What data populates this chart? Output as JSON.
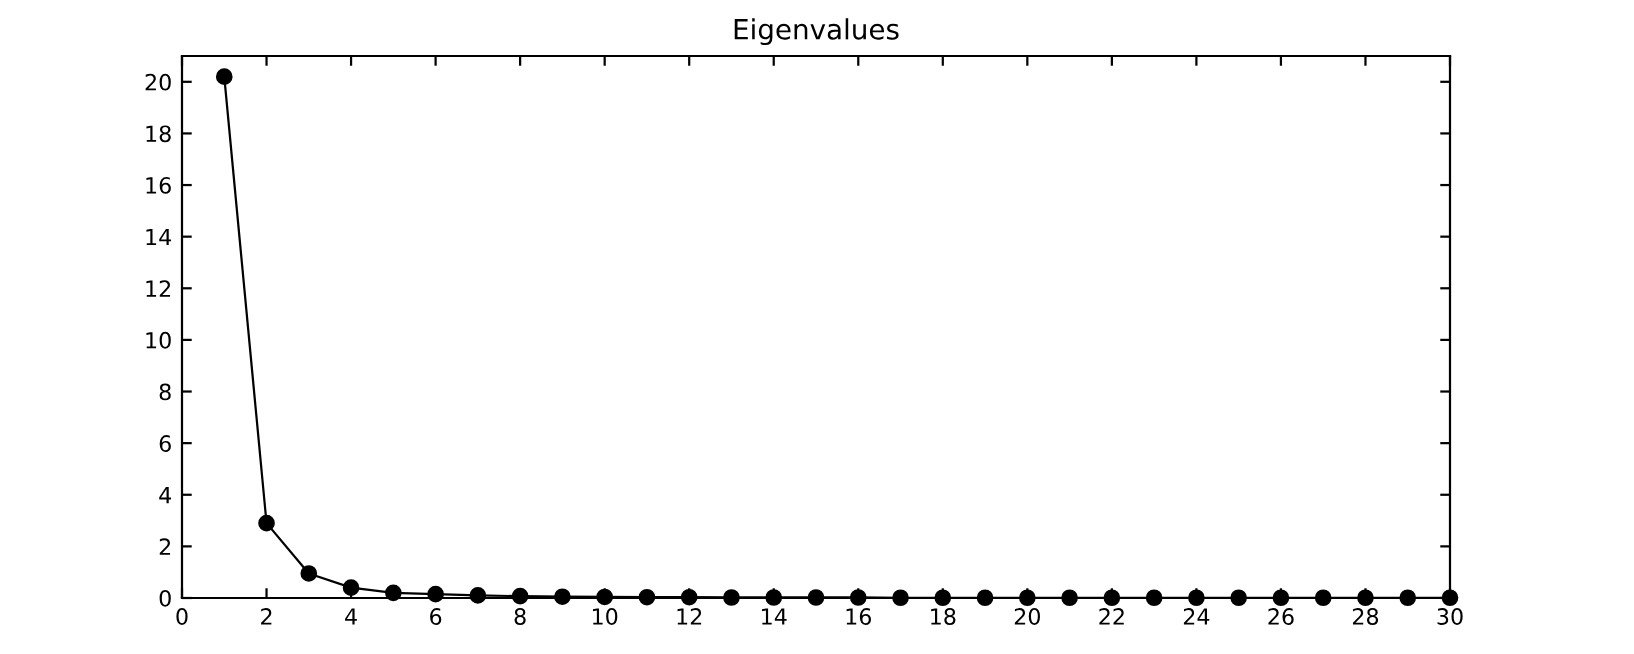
{
  "chart_data": {
    "type": "line",
    "title": "Eigenvalues",
    "x": [
      1,
      2,
      3,
      4,
      5,
      6,
      7,
      8,
      9,
      10,
      11,
      12,
      13,
      14,
      15,
      16,
      17,
      18,
      19,
      20,
      21,
      22,
      23,
      24,
      25,
      26,
      27,
      28,
      29,
      30
    ],
    "series": [
      {
        "color": "#000000",
        "values": [
          20.2,
          2.9,
          0.95,
          0.4,
          0.2,
          0.15,
          0.1,
          0.07,
          0.05,
          0.04,
          0.03,
          0.03,
          0.02,
          0.02,
          0.02,
          0.02,
          0.01,
          0.01,
          0.01,
          0.01,
          0.01,
          0.01,
          0.01,
          0.01,
          0.01,
          0.01,
          0.01,
          0.01,
          0.01,
          0.01
        ]
      }
    ],
    "xlim": [
      0,
      30
    ],
    "xticks": [
      0,
      2,
      4,
      6,
      8,
      10,
      12,
      14,
      16,
      18,
      20,
      22,
      24,
      26,
      28,
      30
    ],
    "ylim": [
      0,
      21
    ],
    "yticks": [
      0,
      2,
      4,
      6,
      8,
      10,
      12,
      14,
      16,
      18,
      20
    ],
    "marker": "circle",
    "line_style": "solid",
    "grid": false,
    "legend": false
  }
}
